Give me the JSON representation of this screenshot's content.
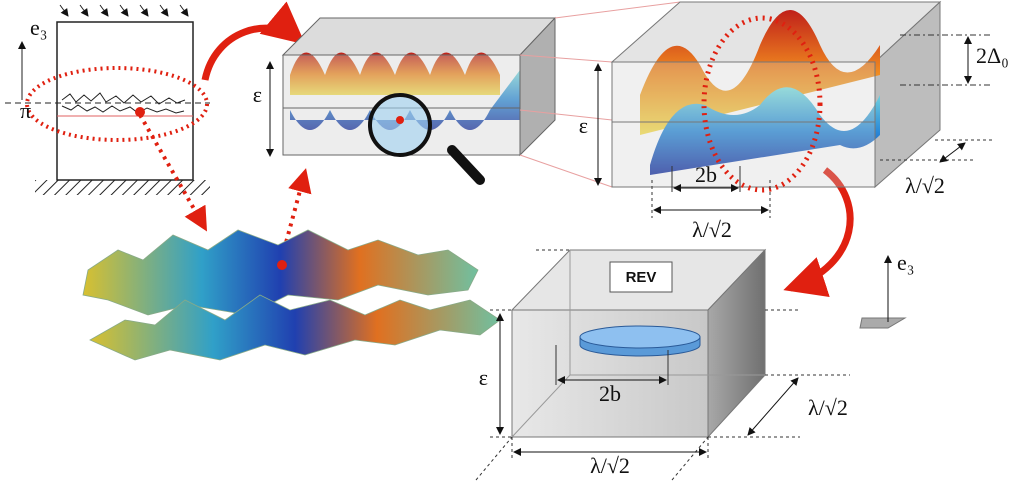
{
  "crack_sketch": {
    "axis_label": "e₃",
    "plane_label": "π"
  },
  "zoom_box": {
    "height_label": "ε"
  },
  "detail_box": {
    "height_label": "ε",
    "amplitude_label": "2Δ₀",
    "asperity_label": "2b",
    "width_label": "λ/√2",
    "depth_label": "λ/√2"
  },
  "rev_box": {
    "title": "REV",
    "height_label": "ε",
    "asperity_label": "2b",
    "depth_label": "λ/√2",
    "width_label": "λ/√2"
  },
  "axis_icon": {
    "label": "e₃"
  }
}
